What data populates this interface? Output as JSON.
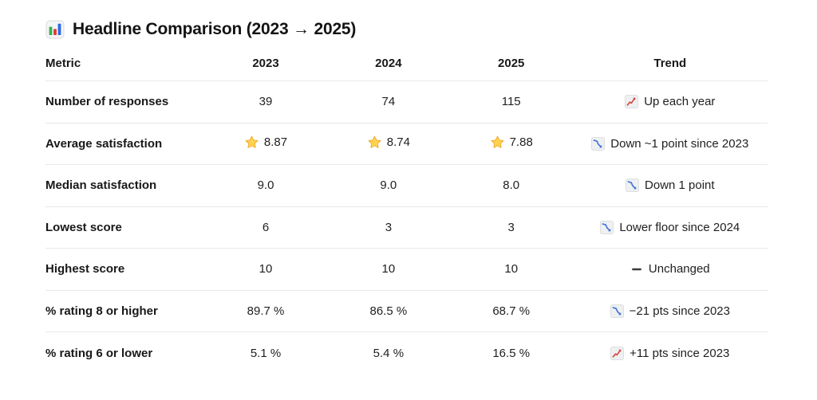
{
  "title": {
    "icon": "bar-chart-icon",
    "text": "Headline Comparison (2023 → 2025)"
  },
  "table": {
    "columns": [
      "Metric",
      "2023",
      "2024",
      "2025",
      "Trend"
    ],
    "rows": [
      {
        "metric": "Number of responses",
        "y2023": "39",
        "y2024": "74",
        "y2025": "115",
        "trend": {
          "icon": "chart-up-icon",
          "text": "Up each year"
        }
      },
      {
        "metric": "Average satisfaction",
        "y2023": "8.87",
        "y2024": "8.74",
        "y2025": "7.88",
        "value_icon": "star-icon",
        "trend": {
          "icon": "chart-down-icon",
          "text": "Down ~1 point since 2023"
        }
      },
      {
        "metric": "Median satisfaction",
        "y2023": "9.0",
        "y2024": "9.0",
        "y2025": "8.0",
        "trend": {
          "icon": "chart-down-icon",
          "text": "Down 1 point"
        }
      },
      {
        "metric": "Lowest score",
        "y2023": "6",
        "y2024": "3",
        "y2025": "3",
        "trend": {
          "icon": "chart-down-icon",
          "text": "Lower floor since 2024"
        }
      },
      {
        "metric": "Highest score",
        "y2023": "10",
        "y2024": "10",
        "y2025": "10",
        "trend": {
          "icon": "minus-icon",
          "text": "Unchanged"
        }
      },
      {
        "metric": "% rating 8 or higher",
        "y2023": "89.7 %",
        "y2024": "86.5 %",
        "y2025": "68.7 %",
        "trend": {
          "icon": "chart-down-icon",
          "text": "−21 pts since 2023"
        }
      },
      {
        "metric": "% rating 6 or lower",
        "y2023": "5.1 %",
        "y2024": "5.4 %",
        "y2025": "16.5 %",
        "trend": {
          "icon": "chart-up-icon",
          "text": "+11 pts since 2023"
        }
      }
    ]
  },
  "colors": {
    "text": "#1c1c1e",
    "divider": "#e8e8ea",
    "up_line": "#d8433c",
    "down_line": "#3e6fd8",
    "star_fill": "#ffd34e",
    "star_stroke": "#eda62c",
    "minus": "#3a3a3c",
    "icon_bg": "#eef0f2",
    "icon_border": "#d9dbde",
    "bar_green": "#35b14e",
    "bar_red": "#e03b30",
    "bar_blue": "#2a6ae8"
  },
  "chart_data": {
    "type": "table",
    "title": "Headline Comparison (2023 → 2025)",
    "columns": [
      "Metric",
      "2023",
      "2024",
      "2025",
      "Trend"
    ],
    "rows": [
      [
        "Number of responses",
        39,
        74,
        115,
        "Up each year"
      ],
      [
        "Average satisfaction",
        8.87,
        8.74,
        7.88,
        "Down ~1 point since 2023"
      ],
      [
        "Median satisfaction",
        9.0,
        9.0,
        8.0,
        "Down 1 point"
      ],
      [
        "Lowest score",
        6,
        3,
        3,
        "Lower floor since 2024"
      ],
      [
        "Highest score",
        10,
        10,
        10,
        "Unchanged"
      ],
      [
        "% rating 8 or higher",
        89.7,
        86.5,
        68.7,
        "−21 pts since 2023"
      ],
      [
        "% rating 6 or lower",
        5.1,
        5.4,
        16.5,
        "+11 pts since 2023"
      ]
    ]
  }
}
